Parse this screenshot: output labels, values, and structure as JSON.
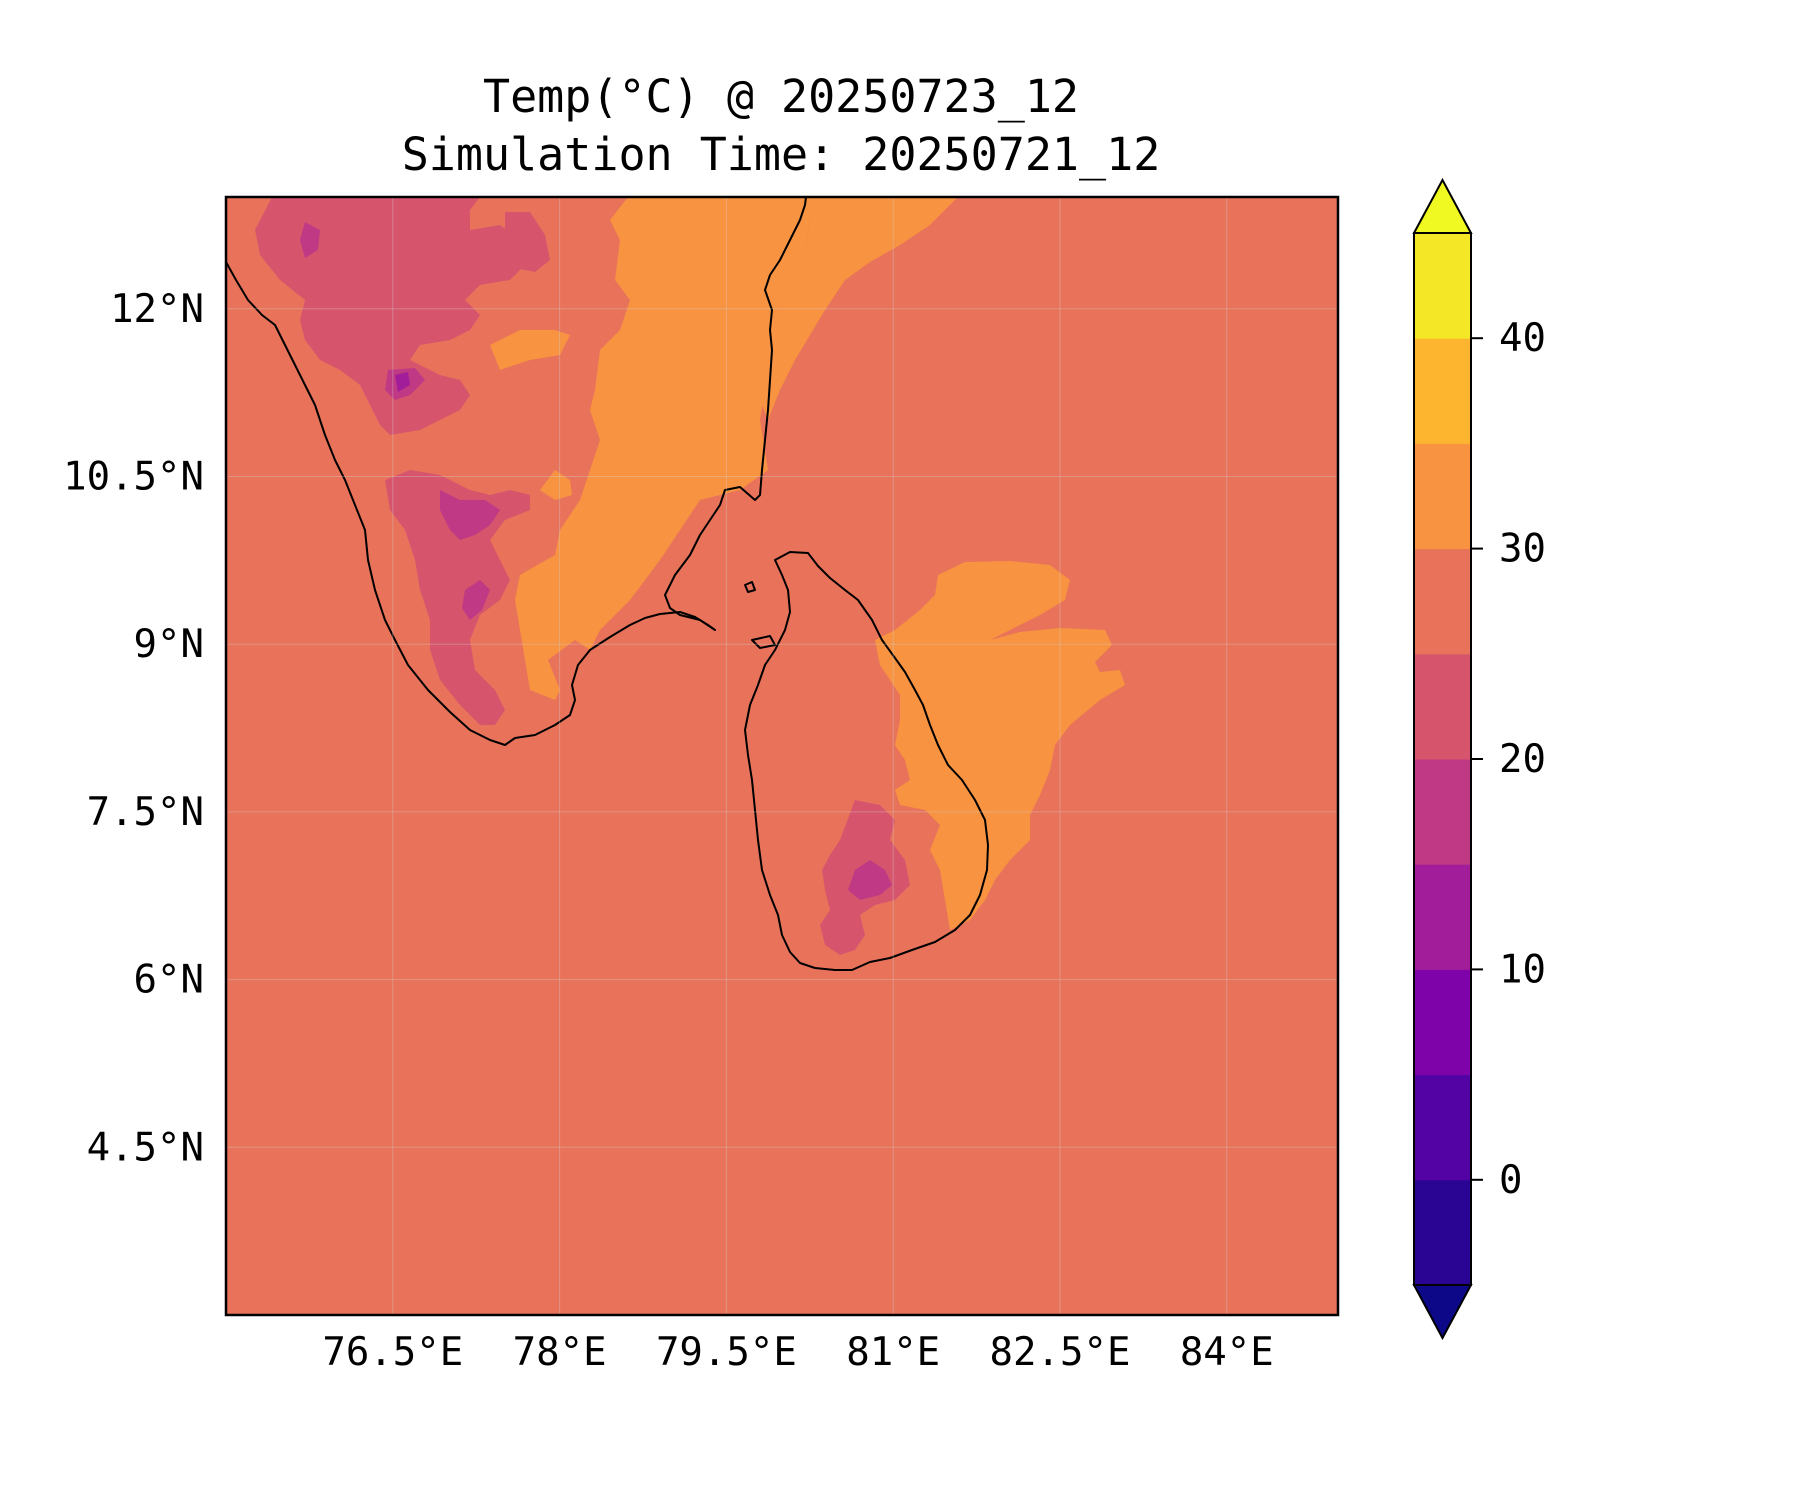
{
  "title": {
    "line1": "Temp(°C) @ 20250723_12",
    "line2": "Simulation Time: 20250721_12"
  },
  "map": {
    "lon_range": [
      75.0,
      85.0
    ],
    "lat_range": [
      3.0,
      13.0
    ],
    "background_fill": "#e8735a",
    "x_ticks": [
      {
        "value": 76.5,
        "label": "76.5°E"
      },
      {
        "value": 78.0,
        "label": "78°E"
      },
      {
        "value": 79.5,
        "label": "79.5°E"
      },
      {
        "value": 81.0,
        "label": "81°E"
      },
      {
        "value": 82.5,
        "label": "82.5°E"
      },
      {
        "value": 84.0,
        "label": "84°E"
      }
    ],
    "y_ticks": [
      {
        "value": 12.0,
        "label": "12°N"
      },
      {
        "value": 10.5,
        "label": "10.5°N"
      },
      {
        "value": 9.0,
        "label": "9°N"
      },
      {
        "value": 7.5,
        "label": "7.5°N"
      },
      {
        "value": 6.0,
        "label": "6°N"
      },
      {
        "value": 4.5,
        "label": "4.5°N"
      }
    ]
  },
  "colorbar": {
    "range": [
      -5,
      45
    ],
    "extend": "both",
    "under_color": "#0d0887",
    "over_color": "#f0f921",
    "bins": [
      {
        "from": -5,
        "to": 0,
        "color": "#2a0593"
      },
      {
        "from": 0,
        "to": 5,
        "color": "#5302a3"
      },
      {
        "from": 5,
        "to": 10,
        "color": "#7e03a8"
      },
      {
        "from": 10,
        "to": 15,
        "color": "#a21d9a"
      },
      {
        "from": 15,
        "to": 20,
        "color": "#bf3984"
      },
      {
        "from": 20,
        "to": 25,
        "color": "#d6556d"
      },
      {
        "from": 25,
        "to": 30,
        "color": "#e8735a"
      },
      {
        "from": 30,
        "to": 35,
        "color": "#f79341"
      },
      {
        "from": 35,
        "to": 40,
        "color": "#fdb42f"
      },
      {
        "from": 40,
        "to": 45,
        "color": "#f3e726"
      }
    ],
    "ticks": [
      {
        "value": 0,
        "label": "0"
      },
      {
        "value": 10,
        "label": "10"
      },
      {
        "value": 20,
        "label": "20"
      },
      {
        "value": 30,
        "label": "30"
      },
      {
        "value": 40,
        "label": "40"
      }
    ]
  }
}
